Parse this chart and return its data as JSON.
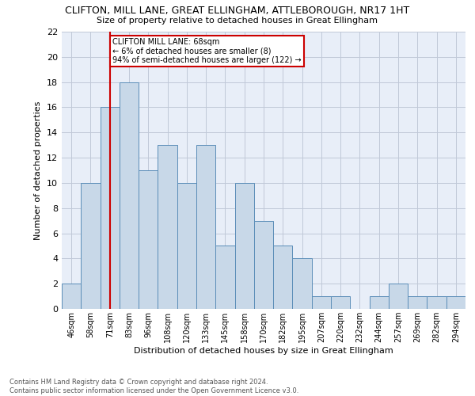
{
  "title": "CLIFTON, MILL LANE, GREAT ELLINGHAM, ATTLEBOROUGH, NR17 1HT",
  "subtitle": "Size of property relative to detached houses in Great Ellingham",
  "xlabel": "Distribution of detached houses by size in Great Ellingham",
  "ylabel": "Number of detached properties",
  "categories": [
    "46sqm",
    "58sqm",
    "71sqm",
    "83sqm",
    "96sqm",
    "108sqm",
    "120sqm",
    "133sqm",
    "145sqm",
    "158sqm",
    "170sqm",
    "182sqm",
    "195sqm",
    "207sqm",
    "220sqm",
    "232sqm",
    "244sqm",
    "257sqm",
    "269sqm",
    "282sqm",
    "294sqm"
  ],
  "values": [
    2,
    10,
    16,
    18,
    11,
    13,
    10,
    13,
    5,
    10,
    7,
    5,
    4,
    1,
    1,
    0,
    1,
    2,
    1,
    1,
    1
  ],
  "bar_color": "#c8d8e8",
  "bar_edge_color": "#5b8db8",
  "vline_x_index": 2,
  "vline_color": "#cc0000",
  "annotation_line1": "CLIFTON MILL LANE: 68sqm",
  "annotation_line2": "← 6% of detached houses are smaller (8)",
  "annotation_line3": "94% of semi-detached houses are larger (122) →",
  "annotation_box_color": "#cc0000",
  "ylim": [
    0,
    22
  ],
  "yticks": [
    0,
    2,
    4,
    6,
    8,
    10,
    12,
    14,
    16,
    18,
    20,
    22
  ],
  "grid_color": "#c0c8d8",
  "background_color": "#e8eef8",
  "footer_line1": "Contains HM Land Registry data © Crown copyright and database right 2024.",
  "footer_line2": "Contains public sector information licensed under the Open Government Licence v3.0."
}
